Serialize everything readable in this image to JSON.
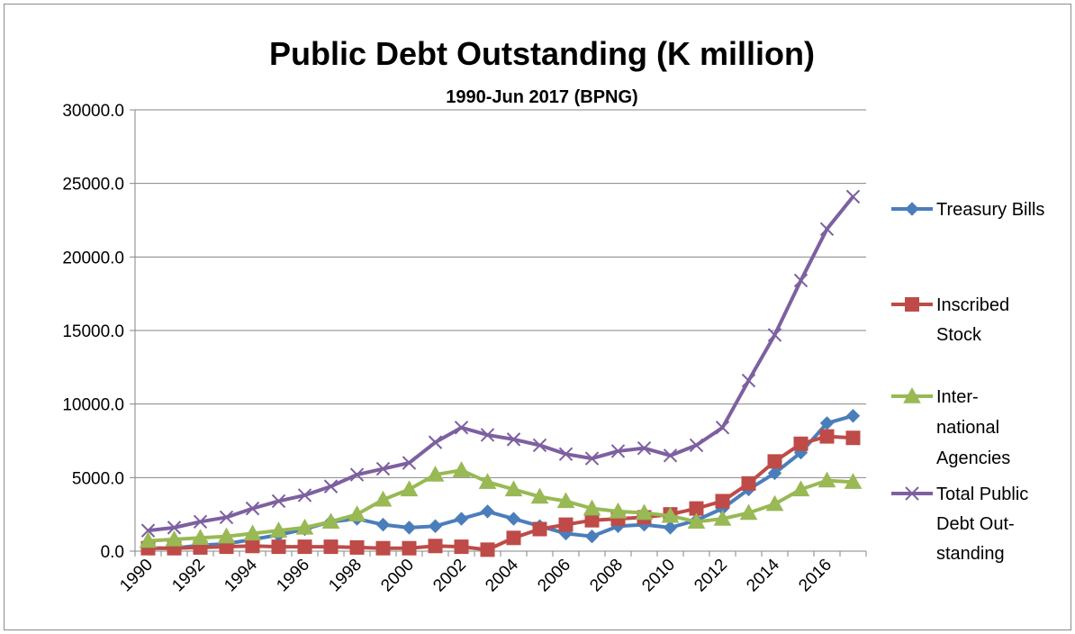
{
  "chart_data": {
    "type": "line",
    "title": "Public Debt Outstanding (K million)",
    "subtitle": "1990-Jun 2017  (BPNG)",
    "ylim": [
      0,
      30000
    ],
    "yticks": [
      "0.0",
      "5000.0",
      "10000.0",
      "15000.0",
      "20000.0",
      "25000.0",
      "30000.0"
    ],
    "ytick_values": [
      0,
      5000,
      10000,
      15000,
      20000,
      25000,
      30000
    ],
    "xtick_labels": [
      "1990",
      "1992",
      "1994",
      "1996",
      "1998",
      "2000",
      "2002",
      "2004",
      "2006",
      "2008",
      "2010",
      "2012",
      "2014",
      "2016"
    ],
    "x": [
      1990,
      1991,
      1992,
      1993,
      1994,
      1995,
      1996,
      1997,
      1998,
      1999,
      2000,
      2001,
      2002,
      2003,
      2004,
      2005,
      2006,
      2007,
      2008,
      2009,
      2010,
      2011,
      2012,
      2013,
      2014,
      2015,
      2016,
      2017
    ],
    "grid": true,
    "legend_position": "right",
    "series": [
      {
        "name_lines": [
          "Treasury Bills"
        ],
        "color": "#4a7ebb",
        "marker": "diamond",
        "values": [
          200,
          200,
          400,
          500,
          800,
          1100,
          1500,
          2000,
          2200,
          1800,
          1600,
          1700,
          2200,
          2700,
          2200,
          1700,
          1200,
          1000,
          1700,
          1800,
          1600,
          2100,
          2900,
          4200,
          5300,
          6700,
          8700,
          9200
        ]
      },
      {
        "name_lines": [
          "Inscribed",
          "Stock"
        ],
        "color": "#be4b48",
        "marker": "square",
        "values": [
          200,
          200,
          250,
          300,
          350,
          300,
          300,
          300,
          250,
          200,
          200,
          350,
          300,
          100,
          900,
          1500,
          1800,
          2100,
          2200,
          2300,
          2500,
          2900,
          3400,
          4600,
          6100,
          7300,
          7800,
          7700
        ]
      },
      {
        "name_lines": [
          "Inter-",
          "national",
          "Agencies"
        ],
        "color": "#98b954",
        "marker": "triangle",
        "values": [
          700,
          800,
          900,
          1000,
          1200,
          1400,
          1600,
          2000,
          2500,
          3500,
          4200,
          5200,
          5500,
          4700,
          4200,
          3700,
          3400,
          2900,
          2700,
          2600,
          2400,
          2000,
          2200,
          2600,
          3200,
          4200,
          4800,
          4700
        ]
      },
      {
        "name_lines": [
          "Total Public",
          "Debt Out-",
          "standing"
        ],
        "color": "#7d60a0",
        "marker": "x",
        "values": [
          1400,
          1600,
          2000,
          2300,
          2900,
          3400,
          3800,
          4400,
          5200,
          5600,
          6000,
          7400,
          8400,
          7900,
          7600,
          7200,
          6600,
          6300,
          6800,
          7000,
          6500,
          7200,
          8400,
          11600,
          14700,
          18400,
          21900,
          24100
        ]
      }
    ]
  }
}
